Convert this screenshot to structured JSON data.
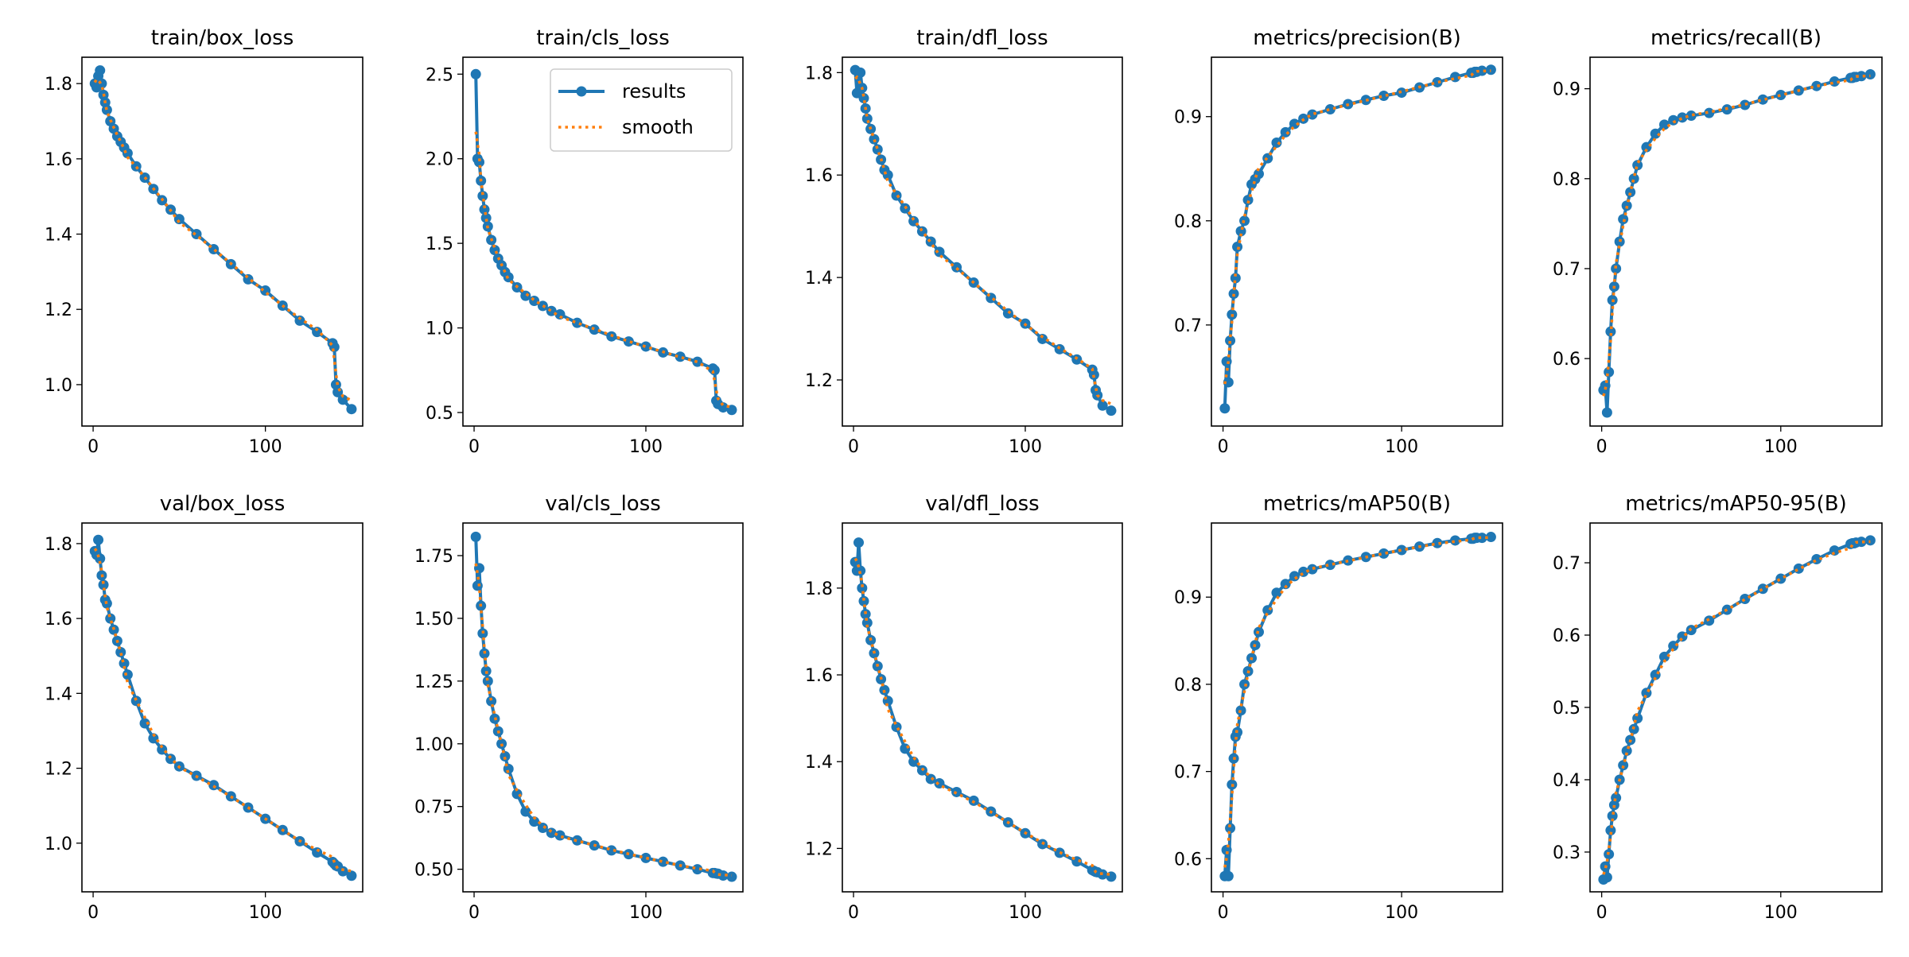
{
  "legend": {
    "results": "results",
    "smooth": "smooth"
  },
  "colors": {
    "results": "#1f77b4",
    "smooth": "#ff7f0e"
  },
  "chart_data": [
    {
      "type": "line",
      "title": "train/box_loss",
      "xlim": [
        -6.5,
        156.5
      ],
      "ylim": [
        0.89,
        1.87
      ],
      "xticks": [
        0,
        100
      ],
      "yticks": [
        1.0,
        1.2,
        1.4,
        1.6,
        1.8
      ],
      "x": [
        1,
        2,
        3,
        4,
        5,
        6,
        7,
        8,
        10,
        12,
        14,
        16,
        18,
        20,
        25,
        30,
        35,
        40,
        45,
        50,
        60,
        70,
        80,
        90,
        100,
        110,
        120,
        130,
        139,
        140,
        141,
        142,
        145,
        150
      ],
      "values": [
        1.8,
        1.79,
        1.82,
        1.835,
        1.8,
        1.77,
        1.75,
        1.73,
        1.7,
        1.68,
        1.66,
        1.645,
        1.63,
        1.615,
        1.58,
        1.55,
        1.52,
        1.49,
        1.465,
        1.44,
        1.4,
        1.36,
        1.32,
        1.28,
        1.25,
        1.21,
        1.17,
        1.14,
        1.11,
        1.1,
        1.0,
        0.98,
        0.96,
        0.935
      ]
    },
    {
      "type": "line",
      "title": "train/cls_loss",
      "xlim": [
        -6.5,
        156.5
      ],
      "ylim": [
        0.42,
        2.6
      ],
      "xticks": [
        0,
        100
      ],
      "yticks": [
        0.5,
        1.0,
        1.5,
        2.0,
        2.5
      ],
      "legend": "upper-right",
      "x": [
        1,
        2,
        3,
        4,
        5,
        6,
        7,
        8,
        10,
        12,
        14,
        16,
        18,
        20,
        25,
        30,
        35,
        40,
        45,
        50,
        60,
        70,
        80,
        90,
        100,
        110,
        120,
        130,
        139,
        140,
        141,
        142,
        145,
        150
      ],
      "values": [
        2.5,
        2.0,
        1.98,
        1.87,
        1.78,
        1.7,
        1.65,
        1.6,
        1.52,
        1.46,
        1.41,
        1.37,
        1.33,
        1.3,
        1.24,
        1.19,
        1.16,
        1.13,
        1.1,
        1.08,
        1.03,
        0.99,
        0.95,
        0.92,
        0.89,
        0.855,
        0.83,
        0.8,
        0.76,
        0.75,
        0.57,
        0.55,
        0.53,
        0.515
      ]
    },
    {
      "type": "line",
      "title": "train/dfl_loss",
      "xlim": [
        -6.5,
        156.5
      ],
      "ylim": [
        1.11,
        1.83
      ],
      "xticks": [
        0,
        100
      ],
      "yticks": [
        1.2,
        1.4,
        1.6,
        1.8
      ],
      "x": [
        1,
        2,
        3,
        4,
        5,
        6,
        7,
        8,
        10,
        12,
        14,
        16,
        18,
        20,
        25,
        30,
        35,
        40,
        45,
        50,
        60,
        70,
        80,
        90,
        100,
        110,
        120,
        130,
        139,
        140,
        141,
        142,
        145,
        150
      ],
      "values": [
        1.805,
        1.76,
        1.8,
        1.8,
        1.77,
        1.75,
        1.73,
        1.71,
        1.69,
        1.67,
        1.65,
        1.63,
        1.61,
        1.6,
        1.56,
        1.535,
        1.51,
        1.49,
        1.47,
        1.45,
        1.42,
        1.39,
        1.36,
        1.33,
        1.31,
        1.28,
        1.26,
        1.24,
        1.22,
        1.21,
        1.18,
        1.17,
        1.15,
        1.14
      ]
    },
    {
      "type": "line",
      "title": "metrics/precision(B)",
      "xlim": [
        -6.5,
        156.5
      ],
      "ylim": [
        0.603,
        0.957
      ],
      "xticks": [
        0,
        100
      ],
      "yticks": [
        0.7,
        0.8,
        0.9
      ],
      "x": [
        1,
        2,
        3,
        4,
        5,
        6,
        7,
        8,
        10,
        12,
        14,
        16,
        18,
        20,
        25,
        30,
        35,
        40,
        45,
        50,
        60,
        70,
        80,
        90,
        100,
        110,
        120,
        130,
        139,
        140,
        141,
        142,
        145,
        150
      ],
      "values": [
        0.62,
        0.665,
        0.645,
        0.685,
        0.71,
        0.73,
        0.745,
        0.775,
        0.79,
        0.8,
        0.82,
        0.835,
        0.84,
        0.845,
        0.86,
        0.875,
        0.885,
        0.893,
        0.898,
        0.902,
        0.907,
        0.912,
        0.916,
        0.92,
        0.923,
        0.928,
        0.933,
        0.938,
        0.942,
        0.942,
        0.943,
        0.943,
        0.944,
        0.945
      ]
    },
    {
      "type": "line",
      "title": "metrics/recall(B)",
      "xlim": [
        -6.5,
        156.5
      ],
      "ylim": [
        0.525,
        0.935
      ],
      "xticks": [
        0,
        100
      ],
      "yticks": [
        0.6,
        0.7,
        0.8,
        0.9
      ],
      "x": [
        1,
        2,
        3,
        4,
        5,
        6,
        7,
        8,
        10,
        12,
        14,
        16,
        18,
        20,
        25,
        30,
        35,
        40,
        45,
        50,
        60,
        70,
        80,
        90,
        100,
        110,
        120,
        130,
        139,
        140,
        141,
        142,
        145,
        150
      ],
      "values": [
        0.565,
        0.57,
        0.54,
        0.585,
        0.63,
        0.665,
        0.68,
        0.7,
        0.73,
        0.755,
        0.77,
        0.785,
        0.8,
        0.815,
        0.835,
        0.85,
        0.86,
        0.865,
        0.868,
        0.87,
        0.873,
        0.877,
        0.882,
        0.888,
        0.893,
        0.898,
        0.903,
        0.908,
        0.912,
        0.912,
        0.913,
        0.913,
        0.914,
        0.916
      ]
    },
    {
      "type": "line",
      "title": "val/box_loss",
      "xlim": [
        -6.5,
        156.5
      ],
      "ylim": [
        0.87,
        1.855
      ],
      "xticks": [
        0,
        100
      ],
      "yticks": [
        1.0,
        1.2,
        1.4,
        1.6,
        1.8
      ],
      "x": [
        1,
        2,
        3,
        4,
        5,
        6,
        7,
        8,
        10,
        12,
        14,
        16,
        18,
        20,
        25,
        30,
        35,
        40,
        45,
        50,
        60,
        70,
        80,
        90,
        100,
        110,
        120,
        130,
        139,
        140,
        141,
        142,
        145,
        150
      ],
      "values": [
        1.78,
        1.77,
        1.81,
        1.76,
        1.715,
        1.69,
        1.65,
        1.64,
        1.6,
        1.57,
        1.54,
        1.51,
        1.48,
        1.45,
        1.38,
        1.32,
        1.28,
        1.25,
        1.225,
        1.205,
        1.18,
        1.155,
        1.125,
        1.095,
        1.065,
        1.035,
        1.005,
        0.975,
        0.95,
        0.945,
        0.94,
        0.938,
        0.925,
        0.913
      ]
    },
    {
      "type": "line",
      "title": "val/cls_loss",
      "xlim": [
        -6.5,
        156.5
      ],
      "ylim": [
        0.41,
        1.88
      ],
      "xticks": [
        0,
        100
      ],
      "yticks": [
        0.5,
        0.75,
        1.0,
        1.25,
        1.5,
        1.75
      ],
      "ytick_labels": [
        "0.50",
        "0.75",
        "1.00",
        "1.25",
        "1.50",
        "1.75"
      ],
      "x": [
        1,
        2,
        3,
        4,
        5,
        6,
        7,
        8,
        10,
        12,
        14,
        16,
        18,
        20,
        25,
        30,
        35,
        40,
        45,
        50,
        60,
        70,
        80,
        90,
        100,
        110,
        120,
        130,
        139,
        140,
        141,
        142,
        145,
        150
      ],
      "values": [
        1.825,
        1.63,
        1.7,
        1.55,
        1.44,
        1.36,
        1.29,
        1.25,
        1.17,
        1.1,
        1.05,
        1.0,
        0.95,
        0.9,
        0.8,
        0.73,
        0.69,
        0.665,
        0.645,
        0.635,
        0.615,
        0.595,
        0.575,
        0.56,
        0.545,
        0.53,
        0.515,
        0.5,
        0.485,
        0.485,
        0.483,
        0.482,
        0.475,
        0.47
      ]
    },
    {
      "type": "line",
      "title": "val/dfl_loss",
      "xlim": [
        -6.5,
        156.5
      ],
      "ylim": [
        1.1,
        1.95
      ],
      "xticks": [
        0,
        100
      ],
      "yticks": [
        1.2,
        1.4,
        1.6,
        1.8
      ],
      "x": [
        1,
        2,
        3,
        4,
        5,
        6,
        7,
        8,
        10,
        12,
        14,
        16,
        18,
        20,
        25,
        30,
        35,
        40,
        45,
        50,
        60,
        70,
        80,
        90,
        100,
        110,
        120,
        130,
        139,
        140,
        141,
        142,
        145,
        150
      ],
      "values": [
        1.86,
        1.84,
        1.905,
        1.84,
        1.8,
        1.77,
        1.74,
        1.72,
        1.68,
        1.65,
        1.62,
        1.59,
        1.565,
        1.54,
        1.48,
        1.43,
        1.4,
        1.38,
        1.36,
        1.35,
        1.33,
        1.31,
        1.285,
        1.26,
        1.235,
        1.21,
        1.19,
        1.17,
        1.15,
        1.148,
        1.146,
        1.145,
        1.14,
        1.135
      ]
    },
    {
      "type": "line",
      "title": "metrics/mAP50(B)",
      "xlim": [
        -6.5,
        156.5
      ],
      "ylim": [
        0.562,
        0.985
      ],
      "xticks": [
        0,
        100
      ],
      "yticks": [
        0.6,
        0.7,
        0.8,
        0.9
      ],
      "x": [
        1,
        2,
        3,
        4,
        5,
        6,
        7,
        8,
        10,
        12,
        14,
        16,
        18,
        20,
        25,
        30,
        35,
        40,
        45,
        50,
        60,
        70,
        80,
        90,
        100,
        110,
        120,
        130,
        139,
        140,
        141,
        142,
        145,
        150
      ],
      "values": [
        0.58,
        0.61,
        0.58,
        0.635,
        0.685,
        0.715,
        0.74,
        0.745,
        0.77,
        0.8,
        0.815,
        0.83,
        0.845,
        0.86,
        0.885,
        0.905,
        0.915,
        0.924,
        0.929,
        0.932,
        0.937,
        0.942,
        0.946,
        0.95,
        0.954,
        0.958,
        0.962,
        0.965,
        0.967,
        0.967,
        0.968,
        0.968,
        0.968,
        0.969
      ]
    },
    {
      "type": "line",
      "title": "metrics/mAP50-95(B)",
      "xlim": [
        -6.5,
        156.5
      ],
      "ylim": [
        0.245,
        0.755
      ],
      "xticks": [
        0,
        100
      ],
      "yticks": [
        0.3,
        0.4,
        0.5,
        0.6,
        0.7
      ],
      "x": [
        1,
        2,
        3,
        4,
        5,
        6,
        7,
        8,
        10,
        12,
        14,
        16,
        18,
        20,
        25,
        30,
        35,
        40,
        45,
        50,
        60,
        70,
        80,
        90,
        100,
        110,
        120,
        130,
        139,
        140,
        141,
        142,
        145,
        150
      ],
      "values": [
        0.262,
        0.28,
        0.265,
        0.297,
        0.33,
        0.35,
        0.365,
        0.375,
        0.4,
        0.42,
        0.44,
        0.455,
        0.47,
        0.485,
        0.52,
        0.545,
        0.57,
        0.585,
        0.598,
        0.607,
        0.62,
        0.635,
        0.65,
        0.664,
        0.678,
        0.692,
        0.705,
        0.717,
        0.726,
        0.727,
        0.727,
        0.728,
        0.729,
        0.731
      ]
    }
  ]
}
